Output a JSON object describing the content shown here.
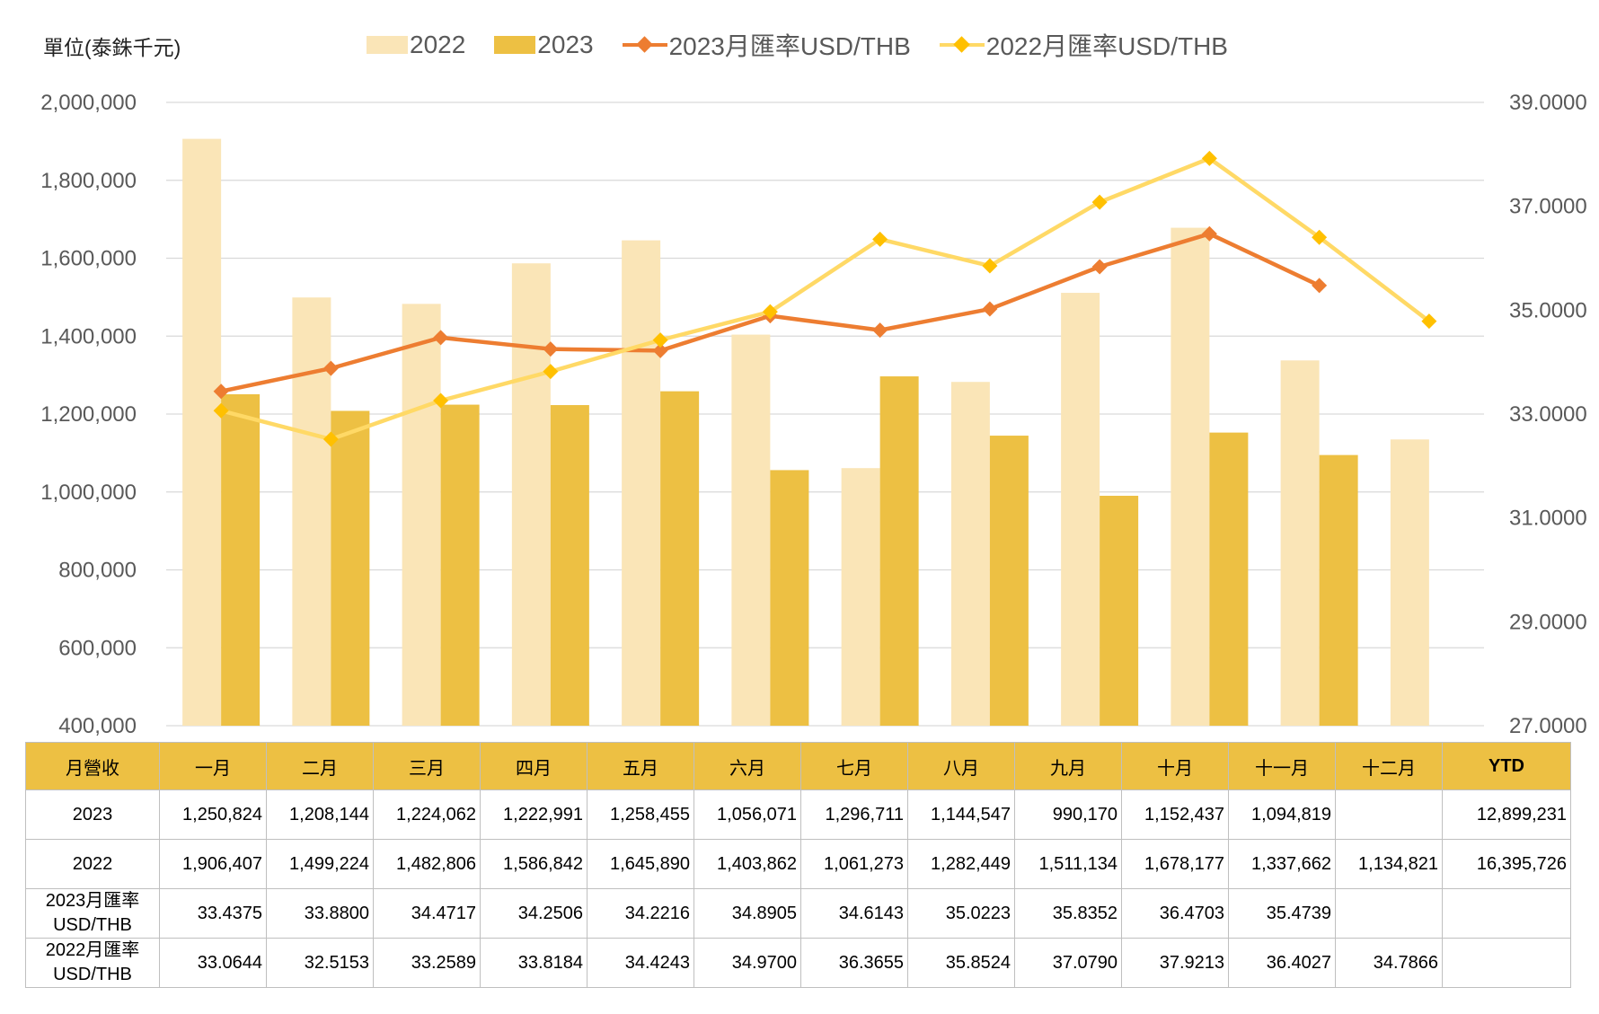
{
  "unit_label": "單位(泰銖千元)",
  "legend": [
    {
      "label": "2022",
      "kind": "bar",
      "color": "#fae5b7"
    },
    {
      "label": "2023",
      "kind": "bar",
      "color": "#edc043"
    },
    {
      "label": "2023月匯率USD/THB",
      "kind": "line",
      "color": "#ed7d31"
    },
    {
      "label": "2022月匯率USD/THB",
      "kind": "line",
      "color": "#ffc000"
    }
  ],
  "chart_data": {
    "type": "bar",
    "categories": [
      "一月",
      "二月",
      "三月",
      "四月",
      "五月",
      "六月",
      "七月",
      "八月",
      "九月",
      "十月",
      "十一月",
      "十二月"
    ],
    "series": [
      {
        "name": "2022",
        "type": "bar",
        "axis": "left",
        "color": "#fae5b7",
        "values": [
          1906407,
          1499224,
          1482806,
          1586842,
          1645890,
          1403862,
          1061273,
          1282449,
          1511134,
          1678177,
          1337662,
          1134821
        ]
      },
      {
        "name": "2023",
        "type": "bar",
        "axis": "left",
        "color": "#edc043",
        "values": [
          1250824,
          1208144,
          1224062,
          1222991,
          1258455,
          1056071,
          1296711,
          1144547,
          990170,
          1152437,
          1094819,
          null
        ]
      },
      {
        "name": "2023月匯率USD/THB",
        "type": "line",
        "axis": "right",
        "color": "#ed7d31",
        "line_color": "#ed7d31",
        "values": [
          33.4375,
          33.88,
          34.4717,
          34.2506,
          34.2216,
          34.8905,
          34.6143,
          35.0223,
          35.8352,
          36.4703,
          35.4739,
          null
        ]
      },
      {
        "name": "2022月匯率USD/THB",
        "type": "line",
        "axis": "right",
        "color": "#ffc000",
        "line_color": "#ffd966",
        "values": [
          33.0644,
          32.5153,
          33.2589,
          33.8184,
          34.4243,
          34.97,
          36.3655,
          35.8524,
          37.079,
          37.9213,
          36.4027,
          34.7866
        ]
      }
    ],
    "y_left": {
      "min": 400000,
      "max": 2000000,
      "ticks": [
        "400,000",
        "600,000",
        "800,000",
        "1,000,000",
        "1,200,000",
        "1,400,000",
        "1,600,000",
        "1,800,000",
        "2,000,000"
      ]
    },
    "y_right": {
      "min": 27,
      "max": 39,
      "ticks": [
        "27.0000",
        "29.0000",
        "31.0000",
        "33.0000",
        "35.0000",
        "37.0000",
        "39.0000"
      ]
    },
    "grid": true,
    "legend_position": "top"
  },
  "table": {
    "header": [
      "月營收",
      "一月",
      "二月",
      "三月",
      "四月",
      "五月",
      "六月",
      "七月",
      "八月",
      "九月",
      "十月",
      "十一月",
      "十二月",
      "YTD"
    ],
    "rows": [
      {
        "label": [
          "2023"
        ],
        "cells": [
          "1,250,824",
          "1,208,144",
          "1,224,062",
          "1,222,991",
          "1,258,455",
          "1,056,071",
          "1,296,711",
          "1,144,547",
          "990,170",
          "1,152,437",
          "1,094,819",
          "",
          "12,899,231"
        ]
      },
      {
        "label": [
          "2022"
        ],
        "cells": [
          "1,906,407",
          "1,499,224",
          "1,482,806",
          "1,586,842",
          "1,645,890",
          "1,403,862",
          "1,061,273",
          "1,282,449",
          "1,511,134",
          "1,678,177",
          "1,337,662",
          "1,134,821",
          "16,395,726"
        ]
      },
      {
        "label": [
          "2023月匯率",
          "USD/THB"
        ],
        "cells": [
          "33.4375",
          "33.8800",
          "34.4717",
          "34.2506",
          "34.2216",
          "34.8905",
          "34.6143",
          "35.0223",
          "35.8352",
          "36.4703",
          "35.4739",
          "",
          ""
        ]
      },
      {
        "label": [
          "2022月匯率",
          "USD/THB"
        ],
        "cells": [
          "33.0644",
          "32.5153",
          "33.2589",
          "33.8184",
          "34.4243",
          "34.9700",
          "36.3655",
          "35.8524",
          "37.0790",
          "37.9213",
          "36.4027",
          "34.7866",
          ""
        ]
      }
    ]
  }
}
